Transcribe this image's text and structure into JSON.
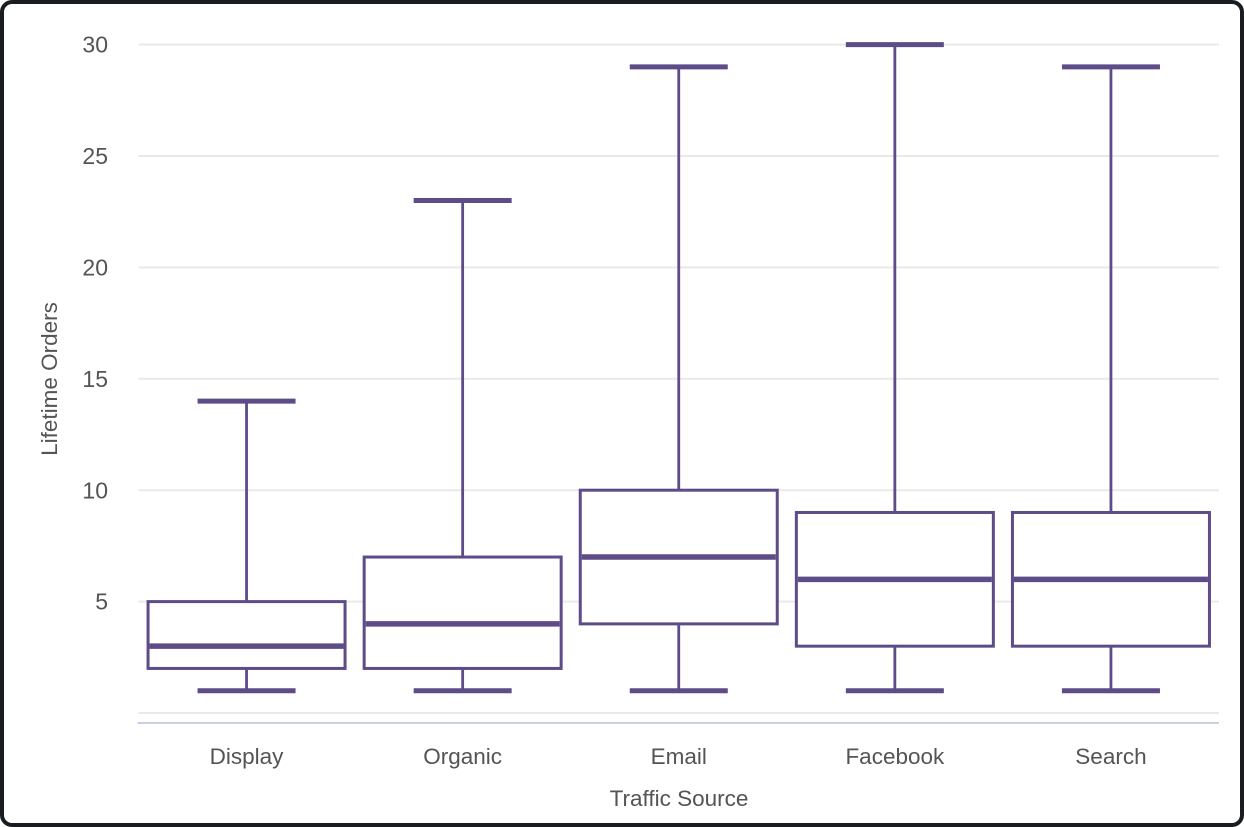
{
  "chart_data": {
    "type": "box",
    "title": "",
    "xlabel": "Traffic Source",
    "ylabel": "Lifetime Orders",
    "categories": [
      "Display",
      "Organic",
      "Email",
      "Facebook",
      "Search"
    ],
    "series": [
      {
        "name": "Display",
        "whisker_low": 1,
        "q1": 2,
        "median": 3,
        "q3": 5,
        "whisker_high": 14
      },
      {
        "name": "Organic",
        "whisker_low": 1,
        "q1": 2,
        "median": 4,
        "q3": 7,
        "whisker_high": 23
      },
      {
        "name": "Email",
        "whisker_low": 1,
        "q1": 4,
        "median": 7,
        "q3": 10,
        "whisker_high": 29
      },
      {
        "name": "Facebook",
        "whisker_low": 1,
        "q1": 3,
        "median": 6,
        "q3": 9,
        "whisker_high": 30
      },
      {
        "name": "Search",
        "whisker_low": 1,
        "q1": 3,
        "median": 6,
        "q3": 9,
        "whisker_high": 29
      }
    ],
    "yticks": [
      5,
      10,
      15,
      20,
      25,
      30
    ],
    "ylim": [
      0,
      31
    ],
    "grid": true,
    "legend": "none",
    "outliers": [],
    "colors": {
      "box": "#5d4c87",
      "box_fill": "#ffffff",
      "grid": "#e9e9e9",
      "zero_line": "#e9e9e9",
      "axis_line": "#c6d2e2",
      "text": "#545454",
      "background": "#ffffff",
      "frame_border": "#1a1d20"
    }
  }
}
